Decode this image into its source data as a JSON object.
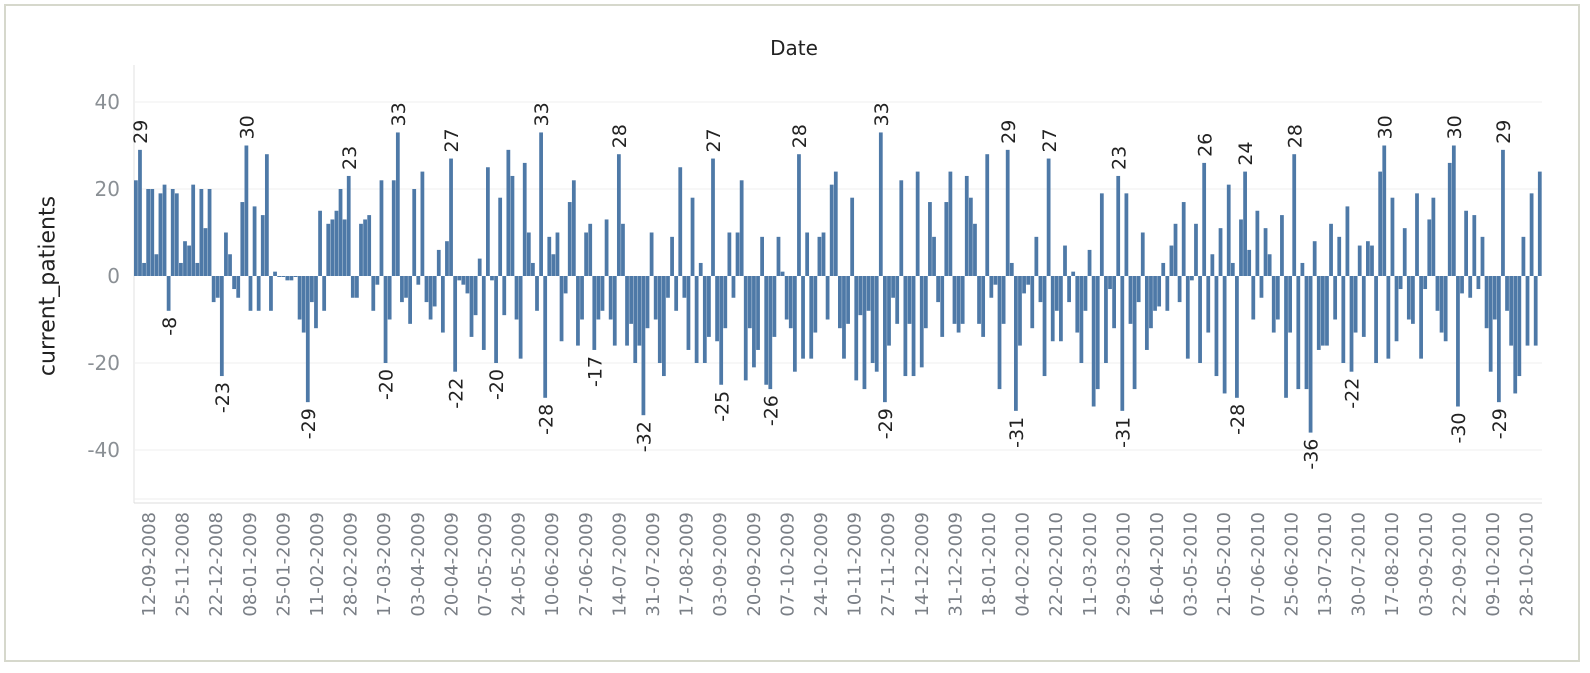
{
  "chart_data": {
    "type": "bar",
    "title": "Date",
    "ylabel": "current_patients",
    "ylim": [
      -52,
      48
    ],
    "yticks": [
      40,
      20,
      0,
      -20,
      -40
    ],
    "bar_color": "#4e79a7",
    "grid": true,
    "x_tick_labels": [
      "12-09-2008",
      "25-11-2008",
      "22-12-2008",
      "08-01-2009",
      "25-01-2009",
      "11-02-2009",
      "28-02-2009",
      "17-03-2009",
      "03-04-2009",
      "20-04-2009",
      "07-05-2009",
      "24-05-2009",
      "10-06-2009",
      "27-06-2009",
      "14-07-2009",
      "31-07-2009",
      "17-08-2009",
      "03-09-2009",
      "20-09-2009",
      "07-10-2009",
      "24-10-2009",
      "10-11-2009",
      "27-11-2009",
      "14-12-2009",
      "31-12-2009",
      "18-01-2010",
      "04-02-2010",
      "22-02-2010",
      "11-03-2010",
      "29-03-2010",
      "16-04-2010",
      "03-05-2010",
      "21-05-2010",
      "07-06-2010",
      "25-06-2010",
      "13-07-2010",
      "30-07-2010",
      "17-08-2010",
      "03-09-2010",
      "22-09-2010",
      "09-10-2010",
      "28-10-2010"
    ],
    "values": [
      22,
      29,
      3,
      20,
      20,
      5,
      19,
      21,
      -8,
      20,
      19,
      3,
      8,
      7,
      21,
      3,
      20,
      11,
      20,
      -6,
      -5,
      -23,
      10,
      5,
      -3,
      -5,
      17,
      30,
      -8,
      16,
      -8,
      14,
      28,
      -8,
      1,
      0,
      0,
      -1,
      -1,
      0,
      -10,
      -13,
      -29,
      -6,
      -12,
      15,
      -8,
      12,
      13,
      15,
      20,
      13,
      23,
      -5,
      -5,
      12,
      13,
      14,
      -8,
      -2,
      22,
      -20,
      -10,
      22,
      33,
      -6,
      -5,
      -11,
      20,
      -2,
      24,
      -6,
      -10,
      -7,
      6,
      -13,
      8,
      27,
      -22,
      -1,
      -2,
      -4,
      -14,
      -9,
      4,
      -17,
      25,
      -1,
      -20,
      18,
      -9,
      29,
      23,
      -10,
      -19,
      26,
      10,
      3,
      -8,
      33,
      -28,
      9,
      5,
      10,
      -15,
      -4,
      17,
      22,
      -16,
      -10,
      10,
      12,
      -17,
      -10,
      -8,
      13,
      -10,
      -16,
      28,
      12,
      -16,
      -11,
      -20,
      -16,
      -32,
      -12,
      10,
      -10,
      -20,
      -23,
      -5,
      9,
      -8,
      25,
      -5,
      -17,
      18,
      -20,
      3,
      -20,
      -14,
      27,
      -15,
      -25,
      -12,
      10,
      -5,
      10,
      22,
      -24,
      -12,
      -21,
      -17,
      9,
      -25,
      -26,
      -14,
      9,
      1,
      -10,
      -12,
      -22,
      28,
      -19,
      10,
      -19,
      -13,
      9,
      10,
      -10,
      21,
      24,
      -12,
      -19,
      -11,
      18,
      -24,
      -9,
      -26,
      -8,
      -20,
      -22,
      33,
      -29,
      -16,
      -5,
      -11,
      22,
      -23,
      -11,
      -23,
      24,
      -21,
      -12,
      17,
      9,
      -6,
      -14,
      17,
      24,
      -11,
      -13,
      -11,
      23,
      18,
      12,
      -11,
      -14,
      28,
      -5,
      -2,
      -26,
      -11,
      29,
      3,
      -31,
      -16,
      -4,
      -2,
      -12,
      9,
      -6,
      -23,
      27,
      -15,
      -8,
      -15,
      7,
      -6,
      1,
      -13,
      -20,
      -8,
      6,
      -30,
      -26,
      19,
      -20,
      -3,
      -12,
      23,
      -31,
      19,
      -11,
      -26,
      -6,
      10,
      -17,
      -12,
      -8,
      -7,
      3,
      -8,
      7,
      12,
      -6,
      17,
      -19,
      -1,
      12,
      -20,
      26,
      -13,
      5,
      -23,
      11,
      -27,
      21,
      3,
      -28,
      13,
      24,
      6,
      -10,
      15,
      -5,
      11,
      5,
      -13,
      -10,
      14,
      -28,
      -13,
      28,
      -26,
      3,
      -26,
      -36,
      8,
      -17,
      -16,
      -16,
      12,
      -10,
      9,
      -20,
      16,
      -22,
      -13,
      7,
      -14,
      8,
      7,
      -20,
      24,
      30,
      -19,
      18,
      -15,
      -3,
      11,
      -10,
      -11,
      19,
      -19,
      -3,
      13,
      18,
      -8,
      -13,
      -15,
      26,
      30,
      -30,
      -4,
      15,
      -5,
      14,
      -3,
      9,
      -12,
      -22,
      -10,
      -29,
      29,
      -8,
      -16,
      -27,
      -23,
      9,
      -16,
      19,
      -16,
      24
    ]
  }
}
